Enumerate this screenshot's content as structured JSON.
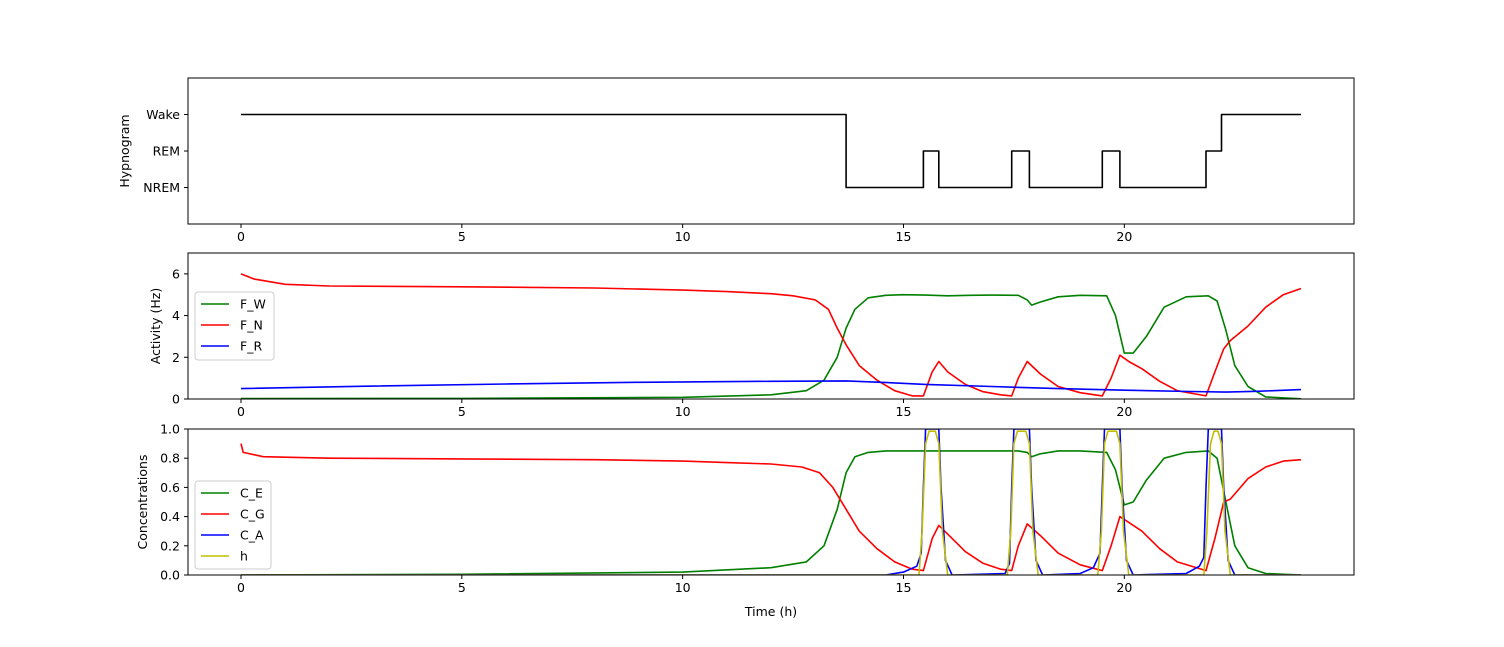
{
  "chart_data": [
    {
      "type": "line",
      "panel": "hypnogram",
      "ylabel": "Hypnogram",
      "xlim": [
        -1.2,
        25.2
      ],
      "ylim": [
        -1,
        3
      ],
      "xticks": [
        0,
        5,
        10,
        15,
        20
      ],
      "yticks": [
        {
          "value": 0,
          "label": "NREM"
        },
        {
          "value": 1,
          "label": "REM"
        },
        {
          "value": 2,
          "label": "Wake"
        }
      ],
      "grid": false,
      "series": [
        {
          "color": "#000000",
          "x": [
            0,
            13.7,
            13.7,
            15.45,
            15.45,
            15.8,
            15.8,
            17.45,
            17.45,
            17.85,
            17.85,
            19.5,
            19.5,
            19.9,
            19.9,
            21.85,
            21.85,
            22.2,
            22.2,
            24
          ],
          "y": [
            2,
            2,
            0,
            0,
            1,
            1,
            0,
            0,
            1,
            1,
            0,
            0,
            1,
            1,
            0,
            0,
            1,
            1,
            2,
            2
          ]
        }
      ]
    },
    {
      "type": "line",
      "panel": "activity",
      "ylabel": "Activity (Hz)",
      "xlim": [
        -1.2,
        25.2
      ],
      "ylim": [
        0,
        7
      ],
      "xticks": [
        0,
        5,
        10,
        15,
        20
      ],
      "yticks": [
        0,
        2,
        4,
        6
      ],
      "grid": false,
      "legend": "center-left",
      "series": [
        {
          "name": "F_W",
          "color": "#008000",
          "x": [
            0,
            5,
            10,
            12,
            12.8,
            13.2,
            13.5,
            13.7,
            13.9,
            14.2,
            14.6,
            15,
            15.5,
            16,
            16.5,
            17,
            17.6,
            17.8,
            17.9,
            18.1,
            18.5,
            19,
            19.6,
            19.8,
            20,
            20.2,
            20.5,
            20.9,
            21.4,
            21.9,
            22.1,
            22.3,
            22.5,
            22.8,
            23.2,
            24
          ],
          "y": [
            0.02,
            0.03,
            0.08,
            0.2,
            0.4,
            0.9,
            2.0,
            3.4,
            4.3,
            4.85,
            4.97,
            5.0,
            4.98,
            4.95,
            4.97,
            4.98,
            4.97,
            4.75,
            4.5,
            4.65,
            4.9,
            4.97,
            4.95,
            4.0,
            2.2,
            2.2,
            3.0,
            4.4,
            4.9,
            4.95,
            4.7,
            3.3,
            1.6,
            0.6,
            0.1,
            0.01
          ]
        },
        {
          "name": "F_N",
          "color": "#ff0000",
          "x": [
            0,
            0.3,
            1,
            2,
            5,
            8,
            10,
            11,
            12,
            12.5,
            13,
            13.3,
            13.5,
            13.7,
            14,
            14.4,
            14.8,
            15.2,
            15.45,
            15.65,
            15.8,
            16,
            16.4,
            16.8,
            17.2,
            17.45,
            17.6,
            17.8,
            18.1,
            18.5,
            19,
            19.5,
            19.7,
            19.9,
            20.1,
            20.4,
            20.8,
            21.2,
            21.85,
            22.05,
            22.25,
            22.4,
            22.8,
            23.2,
            23.6,
            24
          ],
          "y": [
            6.0,
            5.75,
            5.5,
            5.42,
            5.38,
            5.32,
            5.22,
            5.15,
            5.05,
            4.95,
            4.75,
            4.3,
            3.4,
            2.6,
            1.6,
            0.9,
            0.4,
            0.15,
            0.15,
            1.3,
            1.8,
            1.3,
            0.7,
            0.35,
            0.2,
            0.15,
            1.0,
            1.8,
            1.2,
            0.6,
            0.3,
            0.15,
            1.0,
            2.1,
            1.8,
            1.45,
            0.85,
            0.4,
            0.15,
            1.3,
            2.4,
            2.8,
            3.5,
            4.4,
            5.0,
            5.3
          ]
        },
        {
          "name": "F_R",
          "color": "#0000ff",
          "x": [
            0,
            3,
            6,
            9,
            12,
            13.7,
            14.5,
            15.5,
            17,
            18.5,
            20,
            21.5,
            22.3,
            23,
            24
          ],
          "y": [
            0.5,
            0.62,
            0.72,
            0.8,
            0.85,
            0.87,
            0.8,
            0.7,
            0.6,
            0.5,
            0.42,
            0.36,
            0.33,
            0.37,
            0.45
          ]
        }
      ]
    },
    {
      "type": "line",
      "panel": "concentrations",
      "ylabel": "Concentrations",
      "xlabel": "Time (h)",
      "xlim": [
        -1.2,
        25.2
      ],
      "ylim": [
        0,
        1
      ],
      "xticks": [
        0,
        5,
        10,
        15,
        20
      ],
      "yticks": [
        0.0,
        0.2,
        0.4,
        0.6,
        0.8,
        1.0
      ],
      "grid": false,
      "legend": "lower-left",
      "series": [
        {
          "name": "C_E",
          "color": "#008000",
          "x": [
            0,
            5,
            10,
            12,
            12.8,
            13.2,
            13.5,
            13.7,
            13.9,
            14.2,
            14.6,
            15,
            16,
            17,
            17.6,
            17.8,
            17.9,
            18.1,
            18.5,
            19,
            19.6,
            19.8,
            20,
            20.2,
            20.5,
            20.9,
            21.4,
            21.9,
            22.1,
            22.3,
            22.5,
            22.8,
            23.2,
            24
          ],
          "y": [
            0.0,
            0.005,
            0.02,
            0.05,
            0.09,
            0.2,
            0.45,
            0.7,
            0.81,
            0.84,
            0.85,
            0.85,
            0.85,
            0.85,
            0.85,
            0.84,
            0.81,
            0.83,
            0.85,
            0.85,
            0.84,
            0.72,
            0.48,
            0.5,
            0.65,
            0.8,
            0.84,
            0.85,
            0.8,
            0.5,
            0.2,
            0.05,
            0.01,
            0.0
          ]
        },
        {
          "name": "C_G",
          "color": "#ff0000",
          "x": [
            0,
            0.05,
            0.5,
            2,
            5,
            8,
            10,
            11,
            12,
            12.7,
            13.1,
            13.4,
            13.7,
            14,
            14.4,
            14.8,
            15.2,
            15.45,
            15.65,
            15.8,
            16,
            16.4,
            16.8,
            17.2,
            17.45,
            17.6,
            17.8,
            18.1,
            18.5,
            19,
            19.5,
            19.7,
            19.9,
            20.1,
            20.4,
            20.8,
            21.2,
            21.85,
            22.05,
            22.25,
            22.4,
            22.8,
            23.2,
            23.6,
            24
          ],
          "y": [
            0.9,
            0.84,
            0.81,
            0.8,
            0.795,
            0.79,
            0.78,
            0.77,
            0.76,
            0.74,
            0.7,
            0.6,
            0.45,
            0.3,
            0.18,
            0.09,
            0.04,
            0.03,
            0.25,
            0.34,
            0.28,
            0.16,
            0.08,
            0.04,
            0.03,
            0.2,
            0.35,
            0.27,
            0.15,
            0.07,
            0.03,
            0.2,
            0.4,
            0.36,
            0.3,
            0.18,
            0.09,
            0.03,
            0.25,
            0.5,
            0.52,
            0.66,
            0.74,
            0.78,
            0.79
          ]
        },
        {
          "name": "C_A",
          "color": "#0000ff",
          "x": [
            0,
            14.6,
            15.0,
            15.3,
            15.4,
            15.45,
            15.5,
            15.8,
            15.85,
            15.95,
            16.1,
            17.3,
            17.4,
            17.45,
            17.5,
            17.85,
            17.9,
            18.0,
            18.15,
            19.0,
            19.3,
            19.45,
            19.5,
            19.55,
            19.9,
            19.95,
            20.05,
            20.2,
            21.4,
            21.7,
            21.8,
            21.85,
            21.9,
            22.2,
            22.25,
            22.35,
            22.5,
            24
          ],
          "y": [
            0,
            0.0,
            0.02,
            0.06,
            0.15,
            0.6,
            1.0,
            1.0,
            0.6,
            0.1,
            0.0,
            0.01,
            0.08,
            0.6,
            1.0,
            1.0,
            0.6,
            0.1,
            0.0,
            0.01,
            0.05,
            0.15,
            0.6,
            1.0,
            1.0,
            0.6,
            0.1,
            0.0,
            0.01,
            0.06,
            0.12,
            0.6,
            1.0,
            1.0,
            0.6,
            0.1,
            0.0,
            0.0
          ]
        },
        {
          "name": "h",
          "color": "#bfbf00",
          "x": [
            0,
            15.35,
            15.42,
            15.5,
            15.58,
            15.72,
            15.8,
            15.88,
            16.0,
            17.35,
            17.43,
            17.5,
            17.58,
            17.77,
            17.85,
            17.93,
            18.05,
            19.4,
            19.48,
            19.55,
            19.63,
            19.82,
            19.9,
            19.98,
            20.1,
            21.8,
            21.87,
            21.95,
            22.03,
            22.12,
            22.2,
            22.28,
            22.4,
            24
          ],
          "y": [
            0.0,
            0.0,
            0.3,
            0.9,
            0.985,
            0.985,
            0.9,
            0.3,
            0.0,
            0.0,
            0.3,
            0.9,
            0.985,
            0.985,
            0.9,
            0.3,
            0.0,
            0.0,
            0.3,
            0.9,
            0.985,
            0.985,
            0.9,
            0.3,
            0.0,
            0.0,
            0.3,
            0.9,
            0.985,
            0.985,
            0.9,
            0.3,
            0.0,
            0.0
          ]
        }
      ]
    }
  ]
}
